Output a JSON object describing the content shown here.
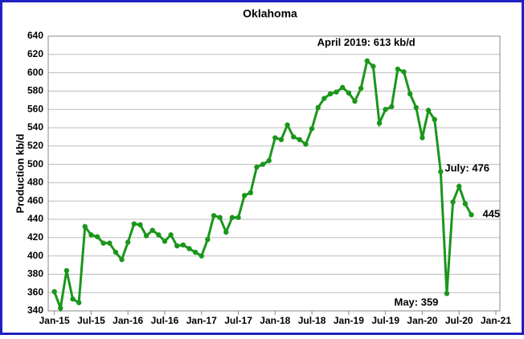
{
  "chart_data": {
    "type": "line",
    "title": "Oklahoma",
    "y_label": "Production kb/d",
    "x": [
      "2015-01",
      "2015-02",
      "2015-03",
      "2015-04",
      "2015-05",
      "2015-06",
      "2015-07",
      "2015-08",
      "2015-09",
      "2015-10",
      "2015-11",
      "2015-12",
      "2016-01",
      "2016-02",
      "2016-03",
      "2016-04",
      "2016-05",
      "2016-06",
      "2016-07",
      "2016-08",
      "2016-09",
      "2016-10",
      "2016-11",
      "2016-12",
      "2017-01",
      "2017-02",
      "2017-03",
      "2017-04",
      "2017-05",
      "2017-06",
      "2017-07",
      "2017-08",
      "2017-09",
      "2017-10",
      "2017-11",
      "2017-12",
      "2018-01",
      "2018-02",
      "2018-03",
      "2018-04",
      "2018-05",
      "2018-06",
      "2018-07",
      "2018-08",
      "2018-09",
      "2018-10",
      "2018-11",
      "2018-12",
      "2019-01",
      "2019-02",
      "2019-03",
      "2019-04",
      "2019-05",
      "2019-06",
      "2019-07",
      "2019-08",
      "2019-09",
      "2019-10",
      "2019-11",
      "2019-12",
      "2020-01",
      "2020-02",
      "2020-03",
      "2020-04",
      "2020-05",
      "2020-06",
      "2020-07",
      "2020-08",
      "2020-09"
    ],
    "series": [
      {
        "name": "Oklahoma",
        "color": "#1a961a",
        "values": [
          361,
          343,
          384,
          353,
          349,
          432,
          423,
          421,
          414,
          414,
          404,
          396,
          415,
          435,
          434,
          422,
          428,
          423,
          416,
          423,
          411,
          412,
          408,
          404,
          400,
          418,
          444,
          442,
          426,
          442,
          442,
          466,
          469,
          497,
          500,
          504,
          529,
          527,
          543,
          530,
          527,
          522,
          539,
          562,
          572,
          577,
          579,
          584,
          578,
          569,
          583,
          613,
          607,
          545,
          560,
          563,
          604,
          601,
          577,
          562,
          529,
          559,
          549,
          492,
          359,
          459,
          476,
          457,
          445
        ]
      }
    ],
    "xlim": [
      "2014-12",
      "2021-01"
    ],
    "xticks": [
      {
        "value": "2015-01",
        "label": "Jan-15"
      },
      {
        "value": "2015-07",
        "label": "Jul-15"
      },
      {
        "value": "2016-01",
        "label": "Jan-16"
      },
      {
        "value": "2016-07",
        "label": "Jul-16"
      },
      {
        "value": "2017-01",
        "label": "Jan-17"
      },
      {
        "value": "2017-07",
        "label": "Jul-17"
      },
      {
        "value": "2018-01",
        "label": "Jan-18"
      },
      {
        "value": "2018-07",
        "label": "Jul-18"
      },
      {
        "value": "2019-01",
        "label": "Jan-19"
      },
      {
        "value": "2019-07",
        "label": "Jul-19"
      },
      {
        "value": "2020-01",
        "label": "Jan-20"
      },
      {
        "value": "2020-07",
        "label": "Jul-20"
      },
      {
        "value": "2021-01",
        "label": "Jan-21"
      }
    ],
    "ylim": [
      340,
      640
    ],
    "yticks": [
      340,
      360,
      380,
      400,
      420,
      440,
      460,
      480,
      500,
      520,
      540,
      560,
      580,
      600,
      620,
      640
    ],
    "grid": true,
    "annotations": [
      {
        "text": "April 2019:  613 kb/d",
        "x": "2019-04",
        "y": 613
      },
      {
        "text": "July: 476",
        "x": "2020-07",
        "y": 476
      },
      {
        "text": "445",
        "x": "2020-09",
        "y": 445
      },
      {
        "text": "May: 359",
        "x": "2020-05",
        "y": 359
      }
    ]
  }
}
